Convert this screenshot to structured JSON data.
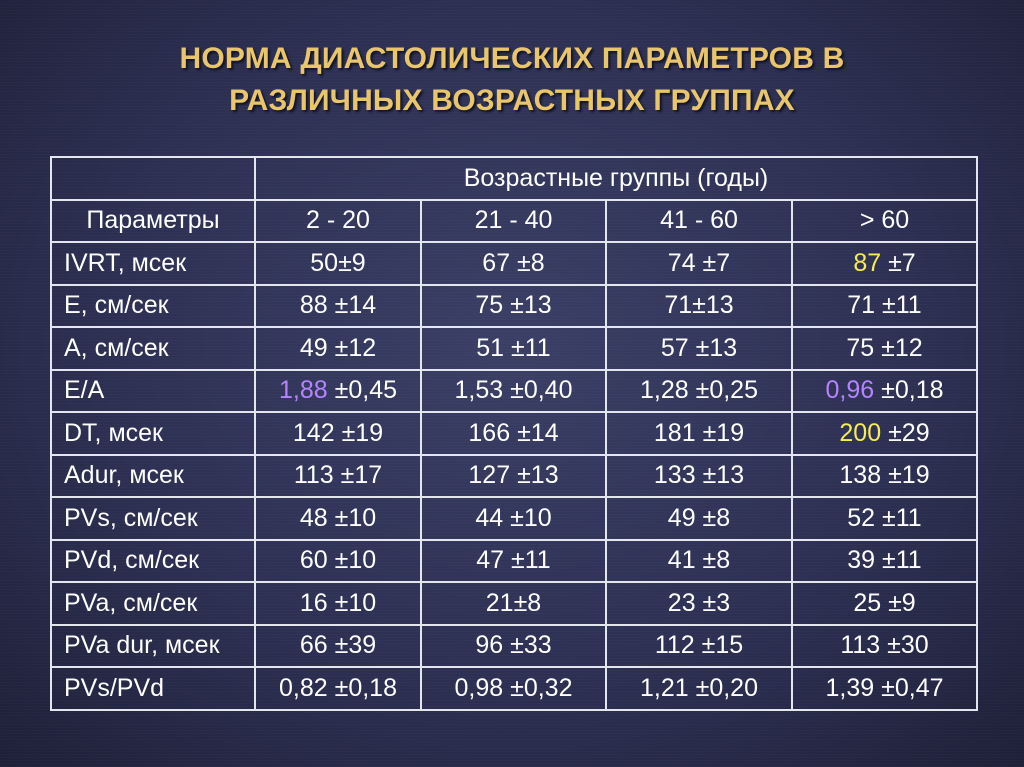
{
  "title": {
    "line1": "НОРМА ДИАСТОЛИЧЕСКИХ ПАРАМЕТРОВ В",
    "line2": "РАЗЛИЧНЫХ ВОЗРАСТНЫХ ГРУППАХ"
  },
  "table": {
    "group_header": "Возрастные группы (годы)",
    "param_header": "Параметры",
    "columns": [
      "2 - 20",
      "21 - 40",
      "41 - 60",
      "> 60"
    ],
    "rows": [
      {
        "param": "IVRT, мсек",
        "cells": [
          {
            "main": "50±9"
          },
          {
            "main": "67 ±8"
          },
          {
            "main": "74 ±7"
          },
          {
            "hl": "87",
            "hl_color": "yellow",
            "rest": " ±7"
          }
        ]
      },
      {
        "param": "E, см/сек",
        "cells": [
          {
            "main": "88 ±14"
          },
          {
            "main": "75 ±13"
          },
          {
            "main": "71±13"
          },
          {
            "main": "71 ±11"
          }
        ]
      },
      {
        "param": "A, см/сек",
        "cells": [
          {
            "main": "49 ±12"
          },
          {
            "main": "51 ±11"
          },
          {
            "main": "57 ±13"
          },
          {
            "main": "75 ±12"
          }
        ]
      },
      {
        "param": "E/A",
        "cells": [
          {
            "hl": "1,88",
            "hl_color": "purple",
            "rest": " ±0,45"
          },
          {
            "main": "1,53 ±0,40"
          },
          {
            "main": "1,28 ±0,25"
          },
          {
            "hl": "0,96",
            "hl_color": "purple",
            "rest": " ±0,18"
          }
        ]
      },
      {
        "param": "DT, мсек",
        "cells": [
          {
            "main": "142 ±19"
          },
          {
            "main": "166 ±14"
          },
          {
            "main": "181 ±19"
          },
          {
            "hl": "200",
            "hl_color": "yellow",
            "rest": " ±29"
          }
        ]
      },
      {
        "param": "Adur, мсек",
        "cells": [
          {
            "main": "113 ±17"
          },
          {
            "main": "127 ±13"
          },
          {
            "main": "133 ±13"
          },
          {
            "main": "138 ±19"
          }
        ]
      },
      {
        "param": "PVs, см/сек",
        "cells": [
          {
            "main": "48 ±10"
          },
          {
            "main": "44 ±10"
          },
          {
            "main": "49 ±8"
          },
          {
            "main": "52 ±11"
          }
        ]
      },
      {
        "param": "PVd, см/сек",
        "cells": [
          {
            "main": "60 ±10"
          },
          {
            "main": "47 ±11"
          },
          {
            "main": "41 ±8"
          },
          {
            "main": "39 ±11"
          }
        ]
      },
      {
        "param": "PVa, см/сек",
        "cells": [
          {
            "main": "16 ±10"
          },
          {
            "main": "21±8"
          },
          {
            "main": "23 ±3"
          },
          {
            "main": "25 ±9"
          }
        ]
      },
      {
        "param": "PVa dur, мсек",
        "cells": [
          {
            "main": "66 ±39"
          },
          {
            "main": "96 ±33"
          },
          {
            "main": "112 ±15"
          },
          {
            "main": "113 ±30"
          }
        ]
      },
      {
        "param": "PVs/PVd",
        "cells": [
          {
            "main": "0,82 ±0,18"
          },
          {
            "main": "0,98 ±0,32"
          },
          {
            "main": "1,21 ±0,20"
          },
          {
            "main": "1,39 ±0,47"
          }
        ]
      }
    ]
  },
  "colors": {
    "title": "#e9c56c",
    "highlight_purple": "#b683ff",
    "highlight_yellow": "#f6ec55"
  }
}
